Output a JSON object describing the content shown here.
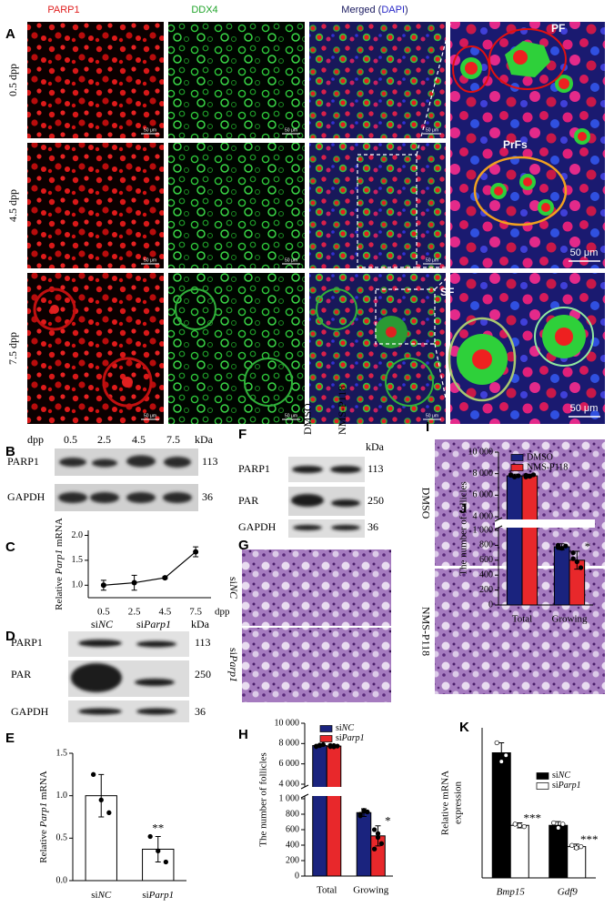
{
  "panel_labels": [
    "A",
    "B",
    "C",
    "D",
    "E",
    "F",
    "G",
    "H",
    "I",
    "J",
    "K"
  ],
  "figure_a": {
    "columns": [
      "PARP1",
      "DDX4"
    ],
    "merged": [
      "Merged (",
      "DAPI",
      ")"
    ],
    "rows": [
      "0.5 dpp",
      "4.5 dpp",
      "7.5 dpp"
    ],
    "scale_bar": "50 μm",
    "annotations": [
      "PF",
      "PrFs",
      "SF"
    ]
  },
  "blot_b": {
    "header": "dpp",
    "lanes": [
      0.5,
      2.5,
      4.5,
      7.5
    ],
    "unit": "kDa",
    "rows": [
      {
        "protein": "PARP1",
        "kda": 113
      },
      {
        "protein": "GAPDH",
        "kda": 36
      }
    ]
  },
  "blot_d": {
    "lanes": [
      [
        "si",
        "NC"
      ],
      [
        "si",
        "Parp1"
      ]
    ],
    "unit": "kDa",
    "rows": [
      {
        "protein": "PARP1",
        "kda": 113
      },
      {
        "protein": "PAR",
        "kda": 250
      },
      {
        "protein": "GAPDH",
        "kda": 36
      }
    ]
  },
  "blot_f": {
    "lanes": [
      "DMSO",
      "NMS-P118"
    ],
    "unit": "kDa",
    "rows": [
      {
        "protein": "PARP1",
        "kda": 113
      },
      {
        "protein": "PAR",
        "kda": 250
      },
      {
        "protein": "GAPDH",
        "kda": 36
      }
    ]
  },
  "histology_g": {
    "rows": [
      [
        "si",
        "NC"
      ],
      [
        "si",
        "Parp1"
      ]
    ]
  },
  "histology_i": {
    "rows": [
      "DMSO",
      "NMS-P118"
    ]
  },
  "chart_data": [
    {
      "type": "line",
      "ylabel": [
        "Relative ",
        "Parp1",
        " mRNA"
      ],
      "ylabel_italic": [
        1
      ],
      "xlabel": "dpp",
      "categories": [
        "0.5",
        "2.5",
        "4.5",
        "7.5"
      ],
      "values": [
        1.0,
        1.05,
        1.15,
        1.67
      ],
      "errors": [
        0.1,
        0.15,
        0.02,
        0.1
      ],
      "color": "#000000",
      "ylim": [
        0.75,
        2.1
      ],
      "yticks": [
        {
          "value": 1,
          "label": "1.0"
        },
        {
          "value": 1.5,
          "label": "1.5"
        },
        {
          "value": 2,
          "label": "2.0"
        }
      ]
    },
    {
      "type": "bar",
      "ylabel": [
        "Relative ",
        "Parp1",
        " mRNA"
      ],
      "ylabel_italic": [
        1
      ],
      "categories": [
        [
          "si",
          "NC"
        ],
        [
          "si",
          "Parp1"
        ]
      ],
      "values": [
        1.0,
        0.37
      ],
      "errors": [
        0.25,
        0.15
      ],
      "points": [
        [
          1.25,
          0.95,
          0.8
        ],
        [
          0.52,
          0.35,
          0.22
        ]
      ],
      "point_color": "#000000",
      "color": "#ffffff",
      "significance": [
        null,
        "**"
      ],
      "ylim": [
        0,
        1.5
      ],
      "yticks": [
        {
          "value": 0,
          "label": "0.0"
        },
        {
          "value": 0.5,
          "label": "0.5"
        },
        {
          "value": 1,
          "label": "1.0"
        },
        {
          "value": 1.5,
          "label": "1.5"
        }
      ]
    },
    {
      "type": "bar",
      "ylabel": "The number of follicles",
      "categories": [
        "Total",
        "Growing"
      ],
      "series": [
        {
          "name": [
            "si",
            "NC"
          ],
          "color": "#1a237e",
          "values": [
            7800,
            820
          ],
          "errors": [
            100,
            50
          ],
          "points": [
            [
              7700,
              7850,
              7900,
              7750,
              7800
            ],
            [
              780,
              850,
              830,
              800,
              840
            ]
          ]
        },
        {
          "name": [
            "si",
            "Parp1"
          ],
          "color": "#e8282b",
          "values": [
            7750,
            520
          ],
          "errors": [
            80,
            130
          ],
          "points": [
            [
              7700,
              7800,
              7750,
              7820,
              7680
            ],
            [
              600,
              500,
              420,
              350,
              550
            ]
          ]
        }
      ],
      "point_color": "#000000",
      "significance": [
        null,
        "*"
      ],
      "ylim": [
        0,
        10000
      ],
      "axis_break": [
        1000,
        4000
      ],
      "yticks": [
        0,
        200,
        400,
        600,
        800,
        {
          "value": 1000,
          "label": "1 000"
        },
        {
          "value": 4000,
          "label": "4 000"
        },
        {
          "value": 6000,
          "label": "6 000"
        },
        {
          "value": 8000,
          "label": "8 000"
        },
        {
          "value": 10000,
          "label": "10 000"
        }
      ]
    },
    {
      "type": "bar",
      "ylabel": "The number of follicles",
      "categories": [
        "Total",
        "Growing"
      ],
      "series": [
        {
          "name": "DMSO",
          "color": "#1a237e",
          "values": [
            7800,
            780
          ],
          "errors": [
            150,
            40
          ],
          "points": [
            [
              7900,
              7700,
              7800,
              7850
            ],
            [
              800,
              760,
              790,
              770
            ]
          ]
        },
        {
          "name": "NMS-P118",
          "color": "#e8282b",
          "values": [
            7800,
            600
          ],
          "errors": [
            150,
            120
          ],
          "points": [
            [
              7850,
              7750,
              7900,
              7700
            ],
            [
              700,
              580,
              500,
              620
            ]
          ]
        }
      ],
      "point_color": "#000000",
      "significance": [
        null,
        "*"
      ],
      "ylim": [
        0,
        10000
      ],
      "axis_break": [
        1000,
        4000
      ],
      "yticks": [
        0,
        200,
        400,
        600,
        800,
        {
          "value": 1000,
          "label": "1 000"
        },
        {
          "value": 4000,
          "label": "4 000"
        },
        {
          "value": 6000,
          "label": "6 000"
        },
        {
          "value": 8000,
          "label": "8 000"
        },
        {
          "value": 10000,
          "label": "10 000"
        }
      ]
    },
    {
      "type": "bar",
      "ylabel": [
        "Relative  mRNA",
        "expression"
      ],
      "ylabel_multiline": true,
      "categories": [
        "Bmp15",
        "Gdf9"
      ],
      "category_italic": true,
      "series": [
        {
          "name": [
            "si",
            "NC"
          ],
          "color": "#000000",
          "values": [
            1.0,
            0.42
          ],
          "errors": [
            0.08,
            0.03
          ],
          "points": [
            [
              1.08,
              0.93,
              0.98
            ],
            [
              0.44,
              0.4,
              0.43
            ]
          ]
        },
        {
          "name": [
            "si",
            "Parp1"
          ],
          "color": "#ffffff",
          "values": [
            0.42,
            0.25
          ],
          "errors": [
            0.02,
            0.02
          ],
          "points": [
            [
              0.43,
              0.42,
              0.41
            ],
            [
              0.26,
              0.24,
              0.25
            ]
          ]
        }
      ],
      "point_color": "#ffffff",
      "significance": [
        "***",
        "***"
      ],
      "ylim": [
        0,
        1.2
      ]
    }
  ]
}
